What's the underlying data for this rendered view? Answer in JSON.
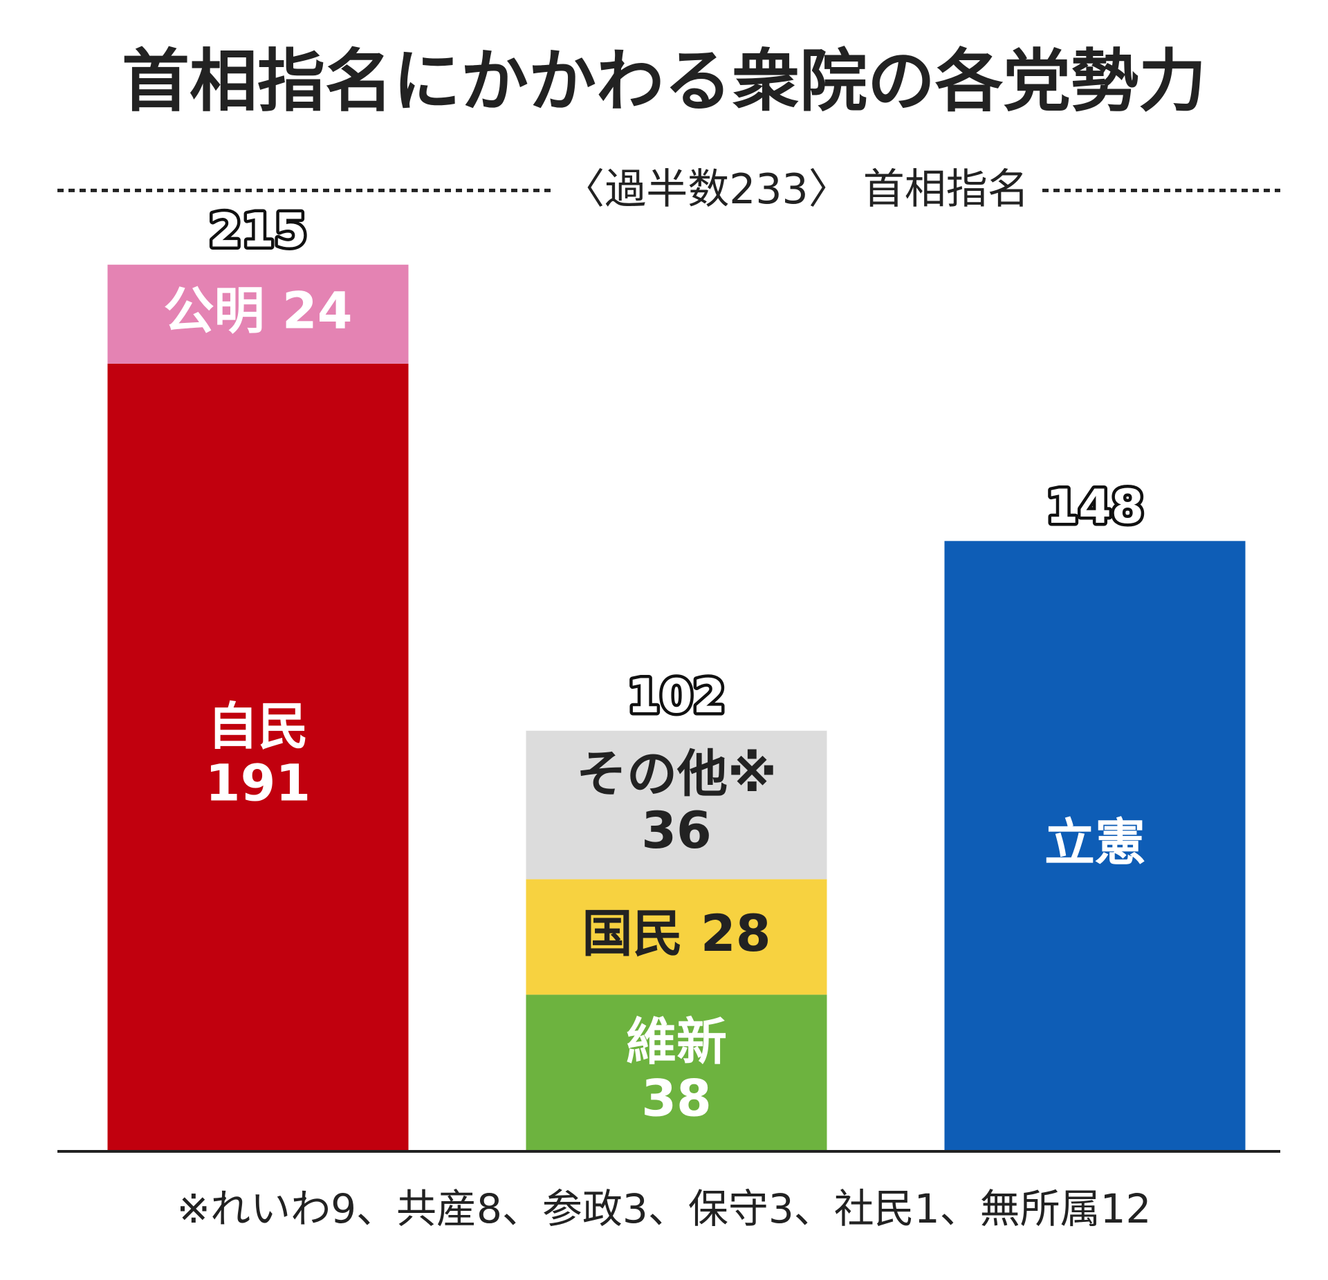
{
  "chart_data": {
    "type": "stacked_bar",
    "title": "首相指名にかかわる衆院の各党勢力",
    "majority": {
      "value": 233,
      "label": "〈過半数233〉 首相指名"
    },
    "ylim": [
      0,
      250
    ],
    "stacks": [
      {
        "total": 215,
        "segments": [
          {
            "name": "自民",
            "value": 191,
            "color": "#c1000e",
            "text_color": "#ffffff"
          },
          {
            "name": "公明",
            "value": 24,
            "color": "#e483b3",
            "text_color": "#ffffff"
          }
        ]
      },
      {
        "total": 102,
        "segments": [
          {
            "name": "維新",
            "value": 38,
            "color": "#6db33f",
            "text_color": "#ffffff"
          },
          {
            "name": "国民",
            "value": 28,
            "color": "#f7d240",
            "text_color": "#222222"
          },
          {
            "name": "その他※",
            "value": 36,
            "color": "#dcdcdc",
            "text_color": "#222222"
          }
        ]
      },
      {
        "total": 148,
        "segments": [
          {
            "name": "立憲",
            "value": 148,
            "color": "#0e5db6",
            "text_color": "#ffffff"
          }
        ]
      }
    ],
    "footnote": "※れいわ9、共産8、参政3、保守3、社民1、無所属12"
  }
}
